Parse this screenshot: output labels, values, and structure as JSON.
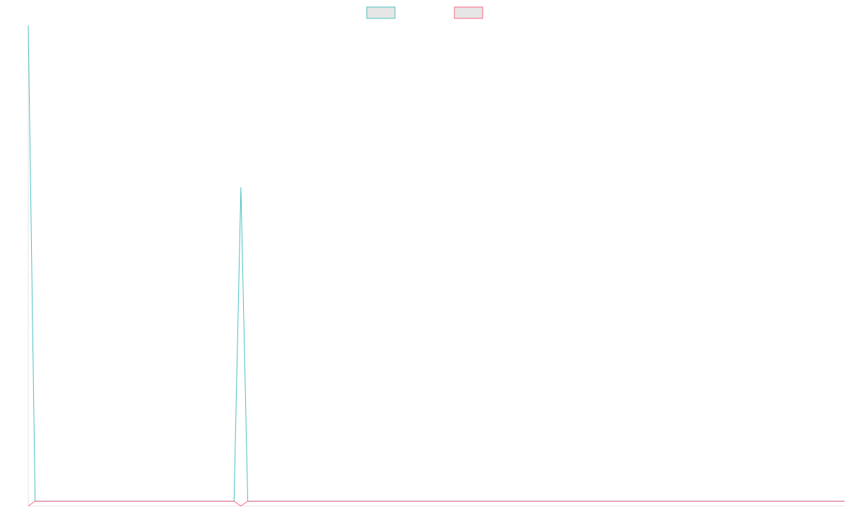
{
  "chart_data": {
    "type": "line",
    "title": "",
    "xlabel": "",
    "ylabel": "",
    "grid": false,
    "legend": "top-center",
    "x_count": 120,
    "ylim": [
      -1,
      100
    ],
    "series": [
      {
        "color": "#4bc0c0",
        "values": [
          100,
          0,
          0,
          0,
          0,
          0,
          0,
          0,
          0,
          0,
          0,
          0,
          0,
          0,
          0,
          0,
          0,
          0,
          0,
          0,
          0,
          0,
          0,
          0,
          0,
          0,
          0,
          0,
          0,
          0,
          0,
          66,
          0,
          0,
          0,
          0,
          0,
          0,
          0,
          0,
          0,
          0,
          0,
          0,
          0,
          0,
          0,
          0,
          0,
          0,
          0,
          0,
          0,
          0,
          0,
          0,
          0,
          0,
          0,
          0,
          0,
          0,
          0,
          0,
          0,
          0,
          0,
          0,
          0,
          0,
          0,
          0,
          0,
          0,
          0,
          0,
          0,
          0,
          0,
          0,
          0,
          0,
          0,
          0,
          0,
          0,
          0,
          0,
          0,
          0,
          0,
          0,
          0,
          0,
          0,
          0,
          0,
          0,
          0,
          0,
          0,
          0,
          0,
          0,
          0,
          0,
          0,
          0,
          0,
          0,
          0,
          0,
          0,
          0,
          0,
          0,
          0,
          0,
          0,
          0
        ]
      },
      {
        "color": "#ff6384",
        "values": [
          -1,
          0,
          0,
          0,
          0,
          0,
          0,
          0,
          0,
          0,
          0,
          0,
          0,
          0,
          0,
          0,
          0,
          0,
          0,
          0,
          0,
          0,
          0,
          0,
          0,
          0,
          0,
          0,
          0,
          0,
          0,
          -1,
          0,
          0,
          0,
          0,
          0,
          0,
          0,
          0,
          0,
          0,
          0,
          0,
          0,
          0,
          0,
          0,
          0,
          0,
          0,
          0,
          0,
          0,
          0,
          0,
          0,
          0,
          0,
          0,
          0,
          0,
          0,
          0,
          0,
          0,
          0,
          0,
          0,
          0,
          0,
          0,
          0,
          0,
          0,
          0,
          0,
          0,
          0,
          0,
          0,
          0,
          0,
          0,
          0,
          0,
          0,
          0,
          0,
          0,
          0,
          0,
          0,
          0,
          0,
          0,
          0,
          0,
          0,
          0,
          0,
          0,
          0,
          0,
          0,
          0,
          0,
          0,
          0,
          0,
          0,
          0,
          0,
          0,
          0,
          0,
          0,
          0,
          0,
          0
        ]
      }
    ]
  }
}
